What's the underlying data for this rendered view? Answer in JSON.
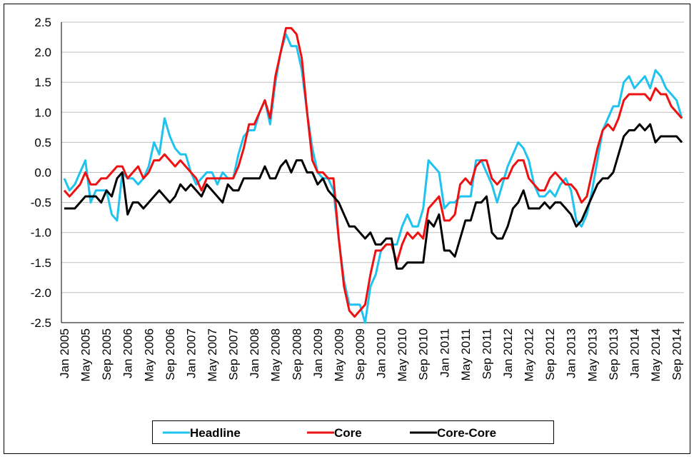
{
  "chart_data": {
    "type": "line",
    "categories": [
      "Jan 2005",
      null,
      null,
      null,
      "May 2005",
      null,
      null,
      null,
      "Sep 2005",
      null,
      null,
      null,
      "Jan 2006",
      null,
      null,
      null,
      "May 2006",
      null,
      null,
      null,
      "Sep 2006",
      null,
      null,
      null,
      "Jan 2007",
      null,
      null,
      null,
      "May 2007",
      null,
      null,
      null,
      "Sep 2007",
      null,
      null,
      null,
      "Jan 2008",
      null,
      null,
      null,
      "May 2008",
      null,
      null,
      null,
      "Sep 2008",
      null,
      null,
      null,
      "Jan 2009",
      null,
      null,
      null,
      "May 2009",
      null,
      null,
      null,
      "Sep 2009",
      null,
      null,
      null,
      "Jan 2010",
      null,
      null,
      null,
      "May 2010",
      null,
      null,
      null,
      "Sep 2010",
      null,
      null,
      null,
      "Jan 2011",
      null,
      null,
      null,
      "May 2011",
      null,
      null,
      null,
      "Sep 2011",
      null,
      null,
      null,
      "Jan 2012",
      null,
      null,
      null,
      "May 2012",
      null,
      null,
      null,
      "Sep 2012",
      null,
      null,
      null,
      "Jan 2013",
      null,
      null,
      null,
      "May 2013",
      null,
      null,
      null,
      "Sep 2013",
      null,
      null,
      null,
      "Jan 2014",
      null,
      null,
      null,
      "May 2014",
      null,
      null,
      null,
      "Sep 2014",
      null
    ],
    "series": [
      {
        "name": "Headline",
        "color": "#1fc3f0",
        "values": [
          -0.1,
          -0.3,
          -0.2,
          0.0,
          0.2,
          -0.5,
          -0.3,
          -0.3,
          -0.3,
          -0.7,
          -0.8,
          0.0,
          -0.1,
          -0.1,
          -0.2,
          -0.1,
          0.1,
          0.5,
          0.3,
          0.9,
          0.6,
          0.4,
          0.3,
          0.3,
          0.0,
          -0.2,
          -0.1,
          0.0,
          0.0,
          -0.2,
          0.0,
          -0.1,
          -0.1,
          0.3,
          0.6,
          0.7,
          0.7,
          1.0,
          1.2,
          0.8,
          1.5,
          2.0,
          2.3,
          2.1,
          2.1,
          1.7,
          1.0,
          0.4,
          0.0,
          -0.1,
          -0.1,
          -0.3,
          -1.1,
          -1.8,
          -2.2,
          -2.2,
          -2.2,
          -2.5,
          -1.9,
          -1.7,
          -1.3,
          -1.2,
          -1.2,
          -1.2,
          -0.9,
          -0.7,
          -0.9,
          -0.9,
          -0.6,
          0.2,
          0.1,
          0.0,
          -0.6,
          -0.5,
          -0.5,
          -0.4,
          -0.4,
          -0.4,
          0.2,
          0.2,
          0.0,
          -0.2,
          -0.5,
          -0.2,
          0.1,
          0.3,
          0.5,
          0.4,
          0.2,
          -0.2,
          -0.4,
          -0.4,
          -0.3,
          -0.4,
          -0.2,
          -0.1,
          -0.3,
          -0.8,
          -0.9,
          -0.7,
          -0.3,
          0.2,
          0.7,
          0.9,
          1.1,
          1.1,
          1.5,
          1.6,
          1.4,
          1.5,
          1.6,
          1.4,
          1.7,
          1.6,
          1.4,
          1.3,
          1.2,
          0.9
        ]
      },
      {
        "name": "Core",
        "color": "#ee1111",
        "values": [
          -0.3,
          -0.4,
          -0.3,
          -0.2,
          0.0,
          -0.2,
          -0.2,
          -0.1,
          -0.1,
          0.0,
          0.1,
          0.1,
          -0.1,
          0.0,
          0.1,
          -0.1,
          0.0,
          0.2,
          0.2,
          0.3,
          0.2,
          0.1,
          0.2,
          0.1,
          0.0,
          -0.1,
          -0.3,
          -0.1,
          -0.1,
          -0.1,
          -0.1,
          -0.1,
          -0.1,
          0.1,
          0.4,
          0.8,
          0.8,
          1.0,
          1.2,
          0.9,
          1.6,
          2.0,
          2.4,
          2.4,
          2.3,
          1.9,
          1.0,
          0.2,
          0.0,
          0.0,
          -0.1,
          -0.1,
          -1.1,
          -1.9,
          -2.3,
          -2.4,
          -2.3,
          -2.2,
          -1.7,
          -1.3,
          -1.3,
          -1.2,
          -1.2,
          -1.5,
          -1.2,
          -1.0,
          -1.1,
          -1.0,
          -1.1,
          -0.6,
          -0.5,
          -0.4,
          -0.8,
          -0.8,
          -0.7,
          -0.2,
          -0.1,
          -0.2,
          0.1,
          0.2,
          0.2,
          -0.1,
          -0.2,
          -0.1,
          -0.1,
          0.1,
          0.2,
          0.2,
          -0.1,
          -0.2,
          -0.3,
          -0.3,
          -0.1,
          0.0,
          -0.1,
          -0.2,
          -0.2,
          -0.3,
          -0.5,
          -0.4,
          0.0,
          0.4,
          0.7,
          0.8,
          0.7,
          0.9,
          1.2,
          1.3,
          1.3,
          1.3,
          1.3,
          1.2,
          1.4,
          1.3,
          1.3,
          1.1,
          1.0,
          0.9
        ]
      },
      {
        "name": "Core-Core",
        "color": "#000000",
        "values": [
          -0.6,
          -0.6,
          -0.6,
          -0.5,
          -0.4,
          -0.4,
          -0.4,
          -0.5,
          -0.3,
          -0.4,
          -0.1,
          0.0,
          -0.7,
          -0.5,
          -0.5,
          -0.6,
          -0.5,
          -0.4,
          -0.3,
          -0.4,
          -0.5,
          -0.4,
          -0.2,
          -0.3,
          -0.2,
          -0.3,
          -0.4,
          -0.2,
          -0.3,
          -0.4,
          -0.5,
          -0.2,
          -0.3,
          -0.3,
          -0.1,
          -0.1,
          -0.1,
          -0.1,
          0.1,
          -0.1,
          -0.1,
          0.1,
          0.2,
          0.0,
          0.2,
          0.2,
          0.0,
          0.0,
          -0.2,
          -0.1,
          -0.3,
          -0.4,
          -0.5,
          -0.7,
          -0.9,
          -0.9,
          -1.0,
          -1.1,
          -1.0,
          -1.2,
          -1.2,
          -1.1,
          -1.1,
          -1.6,
          -1.6,
          -1.5,
          -1.5,
          -1.5,
          -1.5,
          -0.8,
          -0.9,
          -0.7,
          -1.3,
          -1.3,
          -1.4,
          -1.1,
          -0.8,
          -0.8,
          -0.5,
          -0.5,
          -0.4,
          -1.0,
          -1.1,
          -1.1,
          -0.9,
          -0.6,
          -0.5,
          -0.3,
          -0.6,
          -0.6,
          -0.6,
          -0.5,
          -0.6,
          -0.5,
          -0.5,
          -0.6,
          -0.7,
          -0.9,
          -0.8,
          -0.6,
          -0.4,
          -0.2,
          -0.1,
          -0.1,
          0.0,
          0.3,
          0.6,
          0.7,
          0.7,
          0.8,
          0.7,
          0.8,
          0.5,
          0.6,
          0.6,
          0.6,
          0.6,
          0.5
        ]
      }
    ],
    "ylim": [
      -2.5,
      2.5
    ],
    "yticks": [
      -2.5,
      {
        "value": -2,
        "label": "-2.0"
      },
      -1.5,
      {
        "value": -1,
        "label": "-1.0"
      },
      -0.5,
      {
        "value": 0,
        "label": "0.0"
      },
      0.5,
      {
        "value": 1,
        "label": "1.0"
      },
      1.5,
      {
        "value": 2,
        "label": "2.0"
      },
      2.5
    ],
    "grid": true,
    "legend": "bottom"
  }
}
